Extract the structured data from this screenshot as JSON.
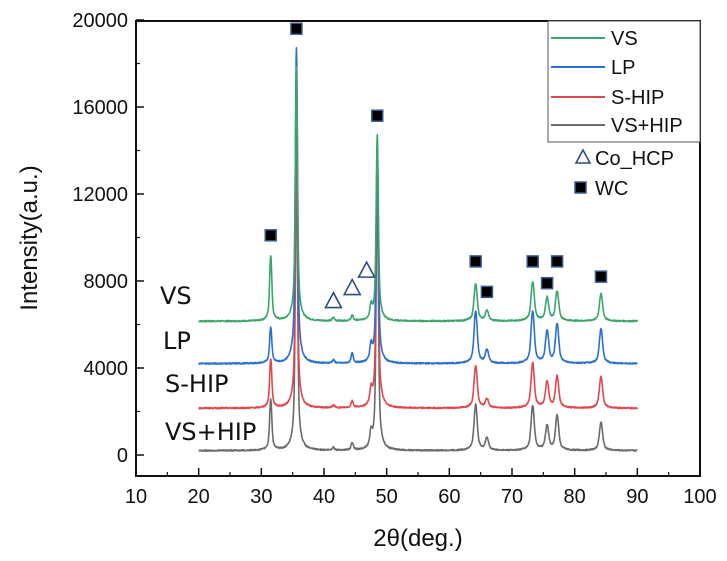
{
  "chart_data": {
    "type": "line",
    "title": "",
    "xlabel": "2θ(deg.)",
    "ylabel": "Intensity(a.u.)",
    "xlim": [
      10,
      100
    ],
    "ylim": [
      -1000,
      20000
    ],
    "xticks": [
      10,
      20,
      30,
      40,
      50,
      60,
      70,
      80,
      90,
      100
    ],
    "xtick_labels": [
      "10",
      "20",
      "30",
      "40",
      "50",
      "60",
      "70",
      "80",
      "90",
      "100"
    ],
    "yticks": [
      0,
      4000,
      8000,
      12000,
      16000,
      20000
    ],
    "ytick_labels": [
      "0",
      "4000",
      "8000",
      "12000",
      "16000",
      "20000"
    ],
    "grid": false,
    "legend_position": "top-right",
    "x_range": [
      20,
      90
    ],
    "series": [
      {
        "name": "VS",
        "color": "#3aa66a",
        "baseline": 6150,
        "peaks": [
          [
            31.5,
            3000
          ],
          [
            35.6,
            11700
          ],
          [
            41.5,
            150
          ],
          [
            44.5,
            250
          ],
          [
            47.5,
            600
          ],
          [
            48.5,
            8550
          ],
          [
            64.2,
            1700
          ],
          [
            66.0,
            450
          ],
          [
            73.3,
            1800
          ],
          [
            75.6,
            1050
          ],
          [
            77.2,
            1350
          ],
          [
            84.2,
            1250
          ]
        ],
        "label": "VS"
      },
      {
        "name": "LP",
        "color": "#2a6fd1",
        "baseline": 4200,
        "peaks": [
          [
            31.5,
            1650
          ],
          [
            35.6,
            14500
          ],
          [
            41.5,
            150
          ],
          [
            44.5,
            450
          ],
          [
            47.5,
            700
          ],
          [
            48.5,
            9800
          ],
          [
            64.2,
            2400
          ],
          [
            66.0,
            600
          ],
          [
            73.3,
            2400
          ],
          [
            75.6,
            1450
          ],
          [
            77.2,
            1800
          ],
          [
            84.2,
            1600
          ]
        ],
        "label": "LP"
      },
      {
        "name": "S-HIP",
        "color": "#e0474c",
        "baseline": 2150,
        "peaks": [
          [
            31.5,
            2250
          ],
          [
            35.6,
            12500
          ],
          [
            41.5,
            120
          ],
          [
            44.5,
            300
          ],
          [
            47.5,
            650
          ],
          [
            48.5,
            12000
          ],
          [
            64.2,
            1950
          ],
          [
            66.0,
            400
          ],
          [
            73.3,
            2050
          ],
          [
            75.6,
            1200
          ],
          [
            77.2,
            1450
          ],
          [
            84.2,
            1450
          ]
        ],
        "label": "S-HIP"
      },
      {
        "name": "VS+HIP",
        "color": "#6b6b6b",
        "baseline": 200,
        "peaks": [
          [
            31.5,
            2350
          ],
          [
            35.6,
            13000
          ],
          [
            41.5,
            130
          ],
          [
            44.5,
            330
          ],
          [
            47.5,
            650
          ],
          [
            48.5,
            12200
          ],
          [
            64.2,
            2100
          ],
          [
            66.0,
            550
          ],
          [
            73.3,
            2050
          ],
          [
            75.6,
            1100
          ],
          [
            77.2,
            1600
          ],
          [
            84.2,
            1300
          ]
        ],
        "label": "VS+HIP"
      }
    ],
    "markers": {
      "Co_HCP": [
        [
          41.5,
          7100
        ],
        [
          44.5,
          7700
        ],
        [
          46.8,
          8500
        ]
      ],
      "WC": [
        [
          31.5,
          10100
        ],
        [
          35.6,
          19600
        ],
        [
          48.5,
          15600
        ],
        [
          64.2,
          8900
        ],
        [
          66.0,
          7500
        ],
        [
          73.3,
          8900
        ],
        [
          75.6,
          7900
        ],
        [
          77.2,
          8900
        ],
        [
          84.2,
          8200
        ]
      ]
    },
    "legend": {
      "lines": [
        "VS",
        "LP",
        "S-HIP",
        "VS+HIP"
      ],
      "symbols": [
        {
          "name": "Co_HCP",
          "icon": "triangle-open"
        },
        {
          "name": "WC",
          "icon": "square-filled"
        }
      ]
    },
    "marker_colors": {
      "triangle": "#2f4a85",
      "square_fill": "#000000",
      "square_edge": "#3d5a8f"
    }
  }
}
